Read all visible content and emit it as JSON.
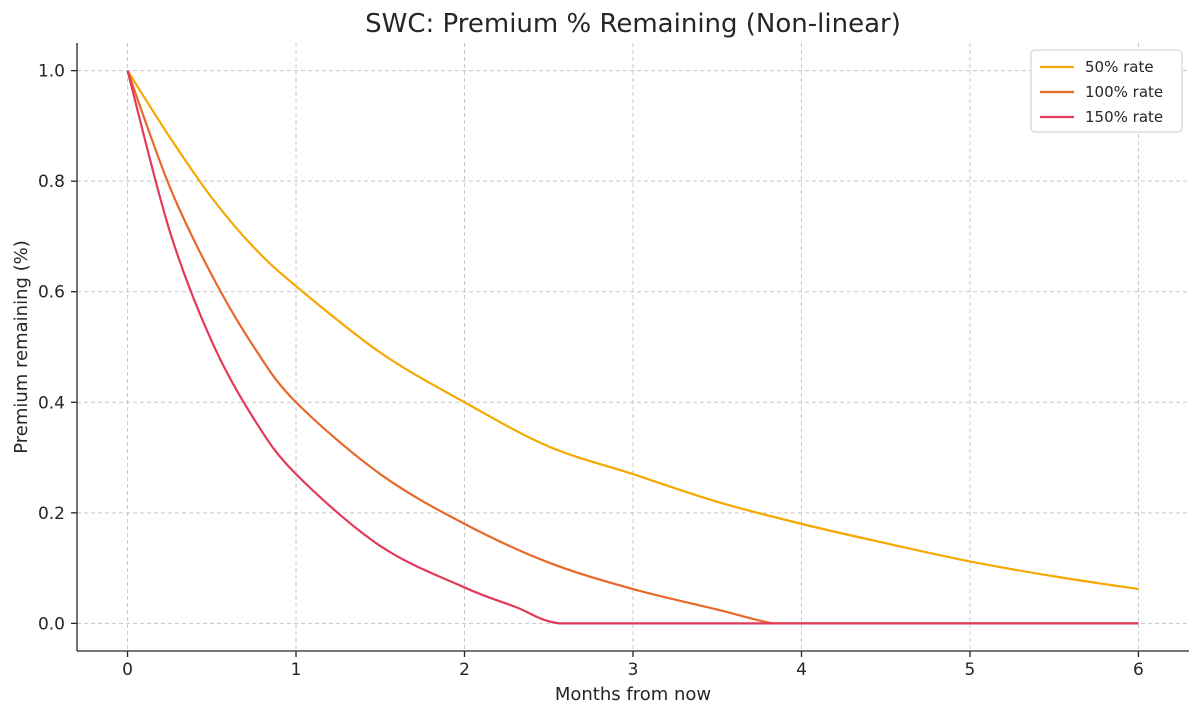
{
  "chart_data": {
    "type": "line",
    "title": "SWC: Premium % Remaining (Non-linear)",
    "xlabel": "Months from now",
    "ylabel": "Premium remaining (%)",
    "xlim": [
      -0.3,
      6.3
    ],
    "ylim": [
      -0.05,
      1.05
    ],
    "xticks": [
      0,
      1,
      2,
      3,
      4,
      5,
      6
    ],
    "xtick_labels": [
      "0",
      "1",
      "2",
      "3",
      "4",
      "5",
      "6"
    ],
    "yticks": [
      0.0,
      0.2,
      0.4,
      0.6,
      0.8,
      1.0
    ],
    "ytick_labels": [
      "0.0",
      "0.2",
      "0.4",
      "0.6",
      "0.8",
      "1.0"
    ],
    "grid": true,
    "legend_position": "top-right",
    "series": [
      {
        "name": "50% rate",
        "color": "#f5a800",
        "x": [
          0,
          0.25,
          0.5,
          0.75,
          1,
          1.5,
          2,
          2.5,
          3,
          3.5,
          4,
          4.5,
          5,
          5.5,
          6
        ],
        "y": [
          1.0,
          0.88,
          0.77,
          0.68,
          0.61,
          0.49,
          0.4,
          0.32,
          0.27,
          0.22,
          0.18,
          0.145,
          0.112,
          0.085,
          0.062
        ]
      },
      {
        "name": "100% rate",
        "color": "#e8682a",
        "x": [
          0,
          0.25,
          0.5,
          0.75,
          1,
          1.5,
          2,
          2.5,
          3,
          3.5,
          3.83,
          4,
          5,
          6
        ],
        "y": [
          1.0,
          0.79,
          0.63,
          0.5,
          0.4,
          0.27,
          0.18,
          0.11,
          0.062,
          0.025,
          0.0,
          0.0,
          0.0,
          0.0
        ]
      },
      {
        "name": "150% rate",
        "color": "#e23a5a",
        "x": [
          0,
          0.25,
          0.5,
          0.75,
          1,
          1.5,
          2,
          2.3,
          2.56,
          3,
          4,
          5,
          6
        ],
        "y": [
          1.0,
          0.71,
          0.51,
          0.37,
          0.27,
          0.14,
          0.065,
          0.03,
          0.0,
          0.0,
          0.0,
          0.0,
          0.0
        ]
      }
    ]
  }
}
